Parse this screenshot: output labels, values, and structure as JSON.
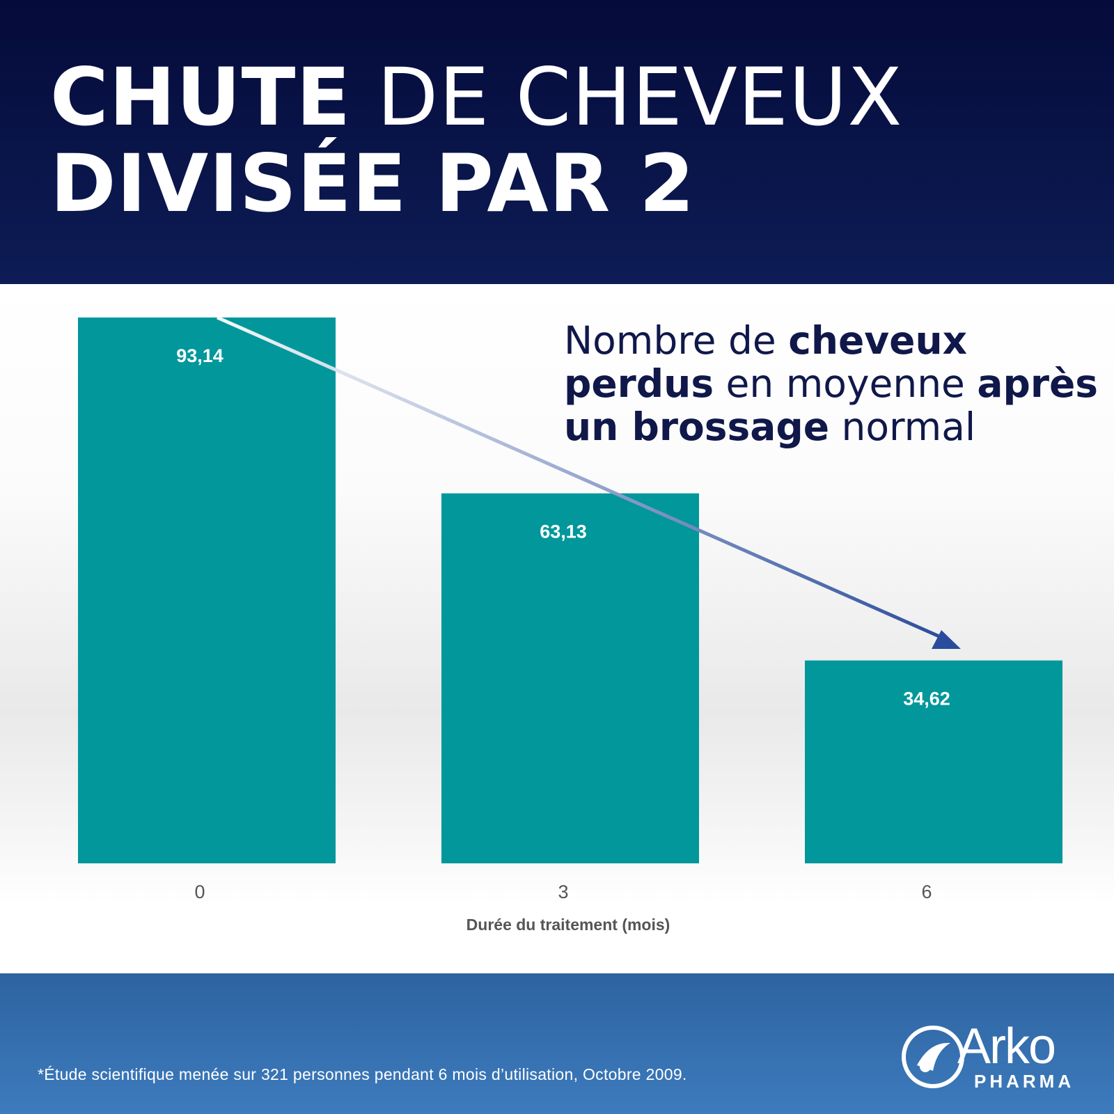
{
  "header": {
    "title_bold_1": "CHUTE",
    "title_light_1": "DE CHEVEUX",
    "title_bold_2": "DIVISÉE PAR 2"
  },
  "subtitle": {
    "part1": "Nombre de ",
    "part2": "cheveux",
    "part3": "perdus",
    "part4": " en moyenne ",
    "part5": "après",
    "part6": "un brossage",
    "part7": " normal"
  },
  "chart_data": {
    "type": "bar",
    "categories": [
      "0",
      "3",
      "6"
    ],
    "values": [
      93.14,
      63.13,
      34.62
    ],
    "data_labels": [
      "93,14",
      "63,13",
      "34,62"
    ],
    "xlabel": "Durée du traitement (mois)",
    "ylabel": "",
    "ylim": [
      0,
      93.14
    ],
    "bar_color": "#02979b",
    "arrow_color": "#2a4c9c",
    "grid": false,
    "legend": "none"
  },
  "footer": {
    "footnote": "*Étude scientifique menée sur 321 personnes pendant 6 mois d’utilisation, Octobre 2009."
  },
  "logo": {
    "name": "Arko",
    "sub": "PHARMA"
  },
  "colors": {
    "header_bg": "#0a1448",
    "footer_bg": "#3570b0",
    "text_dark": "#10184a"
  }
}
